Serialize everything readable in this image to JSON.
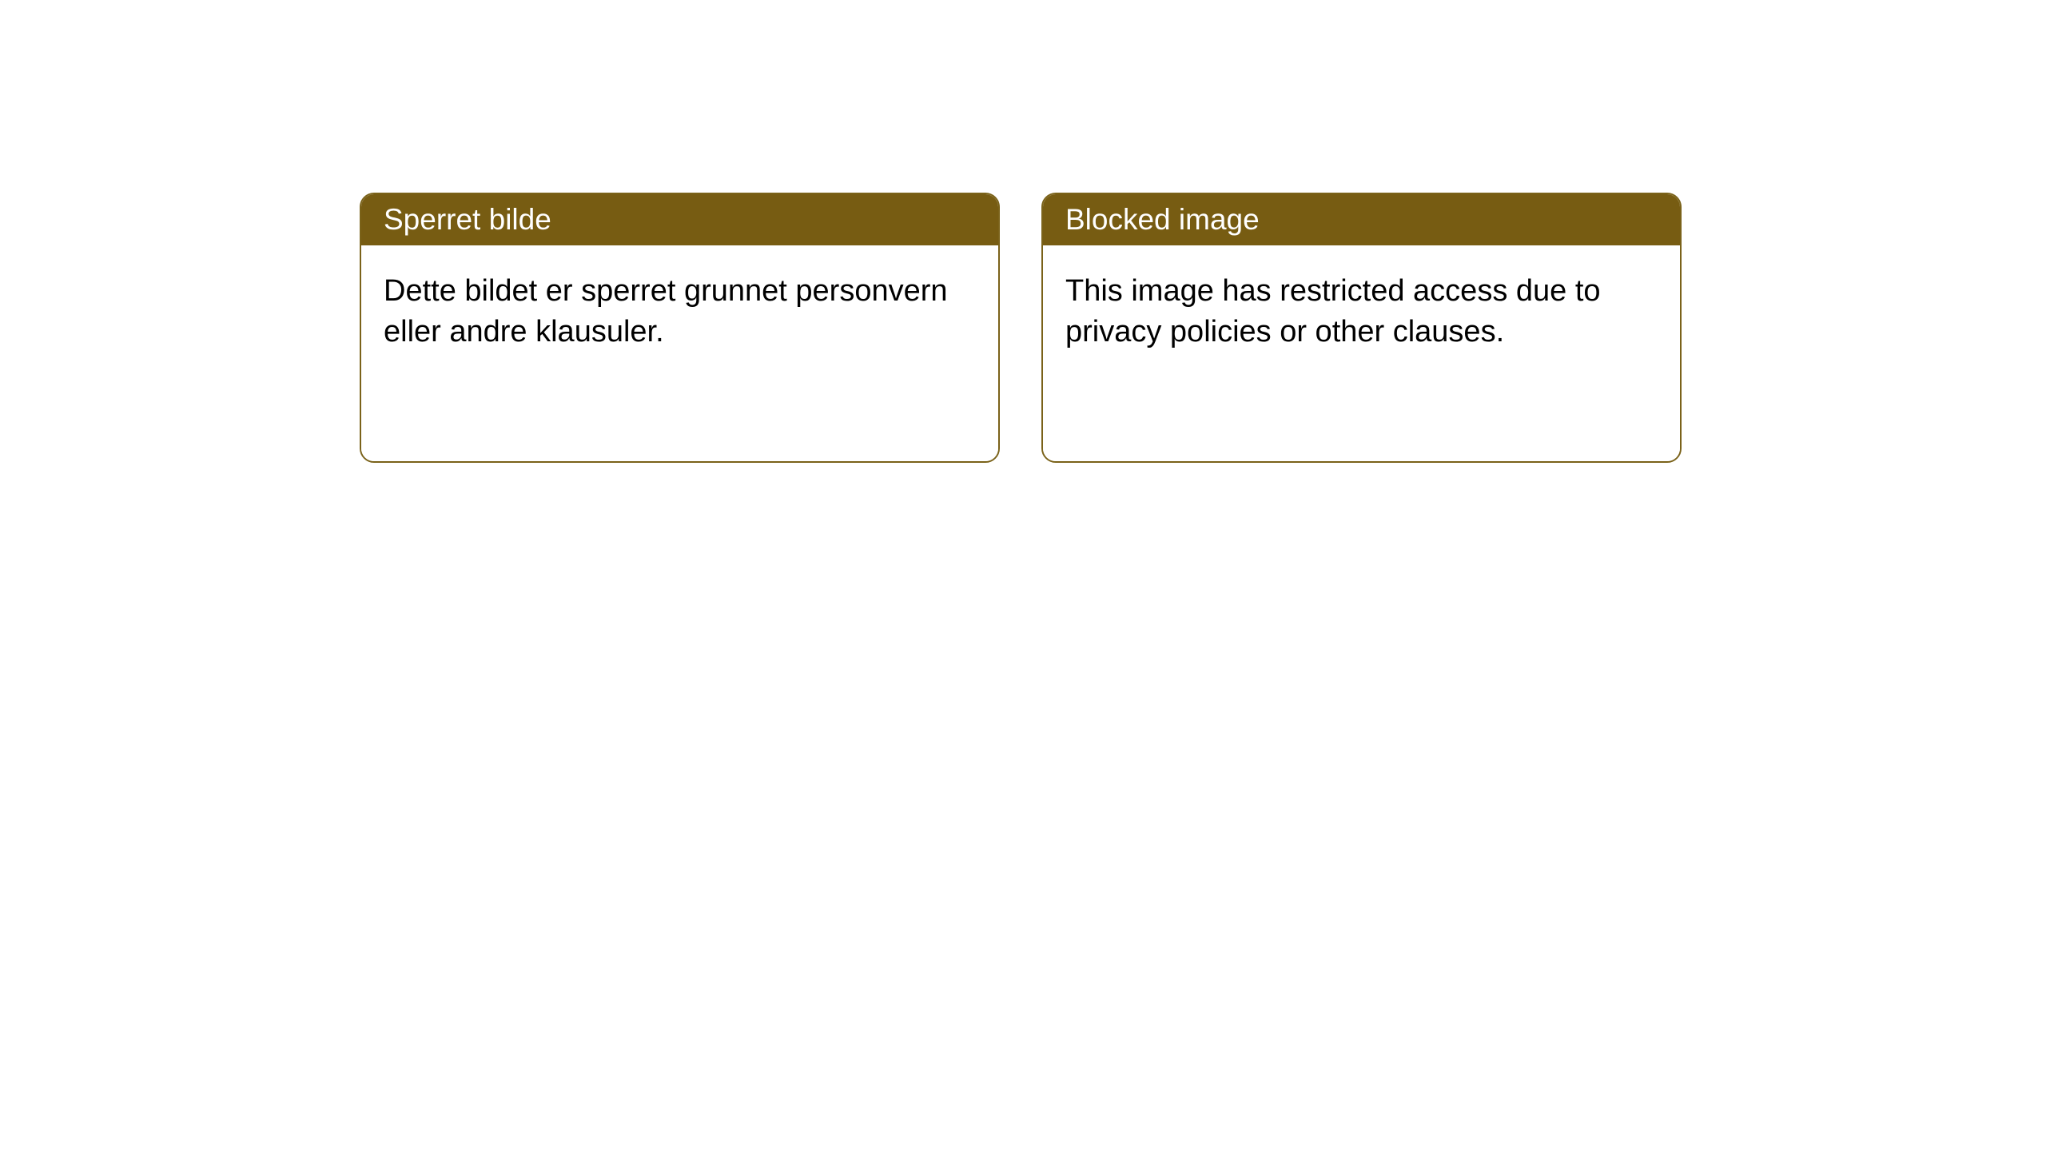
{
  "styling": {
    "header_bg_color": "#775c12",
    "header_text_color": "#ffffff",
    "body_bg_color": "#ffffff",
    "body_text_color": "#000000",
    "border_color": "#7a6219",
    "border_width": "2px",
    "border_radius": "18px",
    "header_font_size": 37,
    "body_font_size": 38
  },
  "cards": [
    {
      "title": "Sperret bilde",
      "body": "Dette bildet er sperret grunnet personvern eller andre klausuler."
    },
    {
      "title": "Blocked image",
      "body": "This image has restricted access due to privacy policies or other clauses."
    }
  ]
}
